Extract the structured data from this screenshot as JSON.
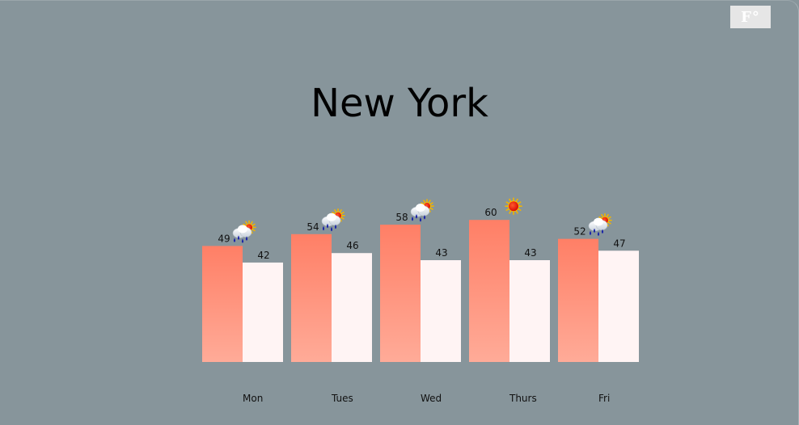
{
  "unit_toggle": {
    "label": "F°"
  },
  "city": "New York",
  "chart_data": {
    "type": "bar",
    "title": "New York",
    "categories": [
      "Mon",
      "Tues",
      "Wed",
      "Thurs",
      "Fri"
    ],
    "series": [
      {
        "values": [
          49,
          54,
          58,
          60,
          52
        ]
      },
      {
        "values": [
          42,
          46,
          43,
          43,
          47
        ]
      }
    ],
    "icons": [
      "rain-sun-icon",
      "rain-sun-icon",
      "rain-sun-icon",
      "sun-icon",
      "rain-sun-icon"
    ],
    "colors": {
      "high_top": "#ff7f66",
      "high_bottom": "#ffa994",
      "low": "#fff4f4",
      "background": "#87959b"
    },
    "grid": false
  }
}
